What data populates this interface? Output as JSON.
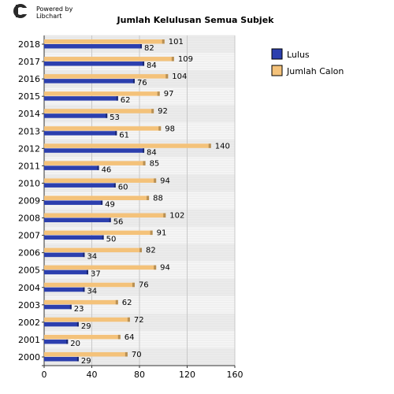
{
  "branding": {
    "line1": "Powered by",
    "line2": "Libchart"
  },
  "chart_data": {
    "type": "bar",
    "orientation": "horizontal",
    "title": "Jumlah Kelulusan Semua Subjek",
    "categories": [
      "2018",
      "2017",
      "2016",
      "2015",
      "2014",
      "2013",
      "2012",
      "2011",
      "2010",
      "2009",
      "2008",
      "2007",
      "2006",
      "2005",
      "2004",
      "2003",
      "2002",
      "2001",
      "2000"
    ],
    "series": [
      {
        "name": "Lulus",
        "color": "#2c3fae",
        "values": [
          82,
          84,
          76,
          62,
          53,
          61,
          84,
          46,
          60,
          49,
          56,
          50,
          34,
          37,
          34,
          23,
          29,
          20,
          29
        ]
      },
      {
        "name": "Jumlah Calon",
        "color": "#f4c27a",
        "values": [
          101,
          109,
          104,
          97,
          92,
          98,
          140,
          85,
          94,
          88,
          102,
          91,
          82,
          94,
          76,
          62,
          72,
          64,
          70
        ]
      }
    ],
    "xlim": [
      0,
      160
    ],
    "xticks": [
      0,
      40,
      80,
      120,
      160
    ],
    "grid": true,
    "legend_position": "right"
  }
}
